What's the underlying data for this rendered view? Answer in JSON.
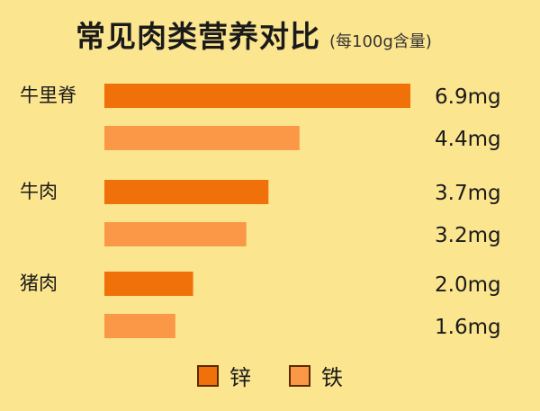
{
  "chart_data": {
    "type": "bar",
    "orientation": "horizontal",
    "title": "常见肉类营养对比",
    "subtitle": "(每100g含量)",
    "categories": [
      "牛里脊",
      "牛肉",
      "猪肉"
    ],
    "series": [
      {
        "name": "锌",
        "values": [
          6.9,
          3.7,
          2.0
        ],
        "labels": [
          "6.9mg",
          "3.7mg",
          "2.0mg"
        ],
        "color": "#f0700a"
      },
      {
        "name": "铁",
        "values": [
          4.4,
          3.2,
          1.6
        ],
        "labels": [
          "4.4mg",
          "3.2mg",
          "1.6mg"
        ],
        "color": "#fb9848"
      }
    ],
    "xlim": [
      0,
      6.9
    ],
    "grid": false,
    "legend_position": "bottom"
  }
}
